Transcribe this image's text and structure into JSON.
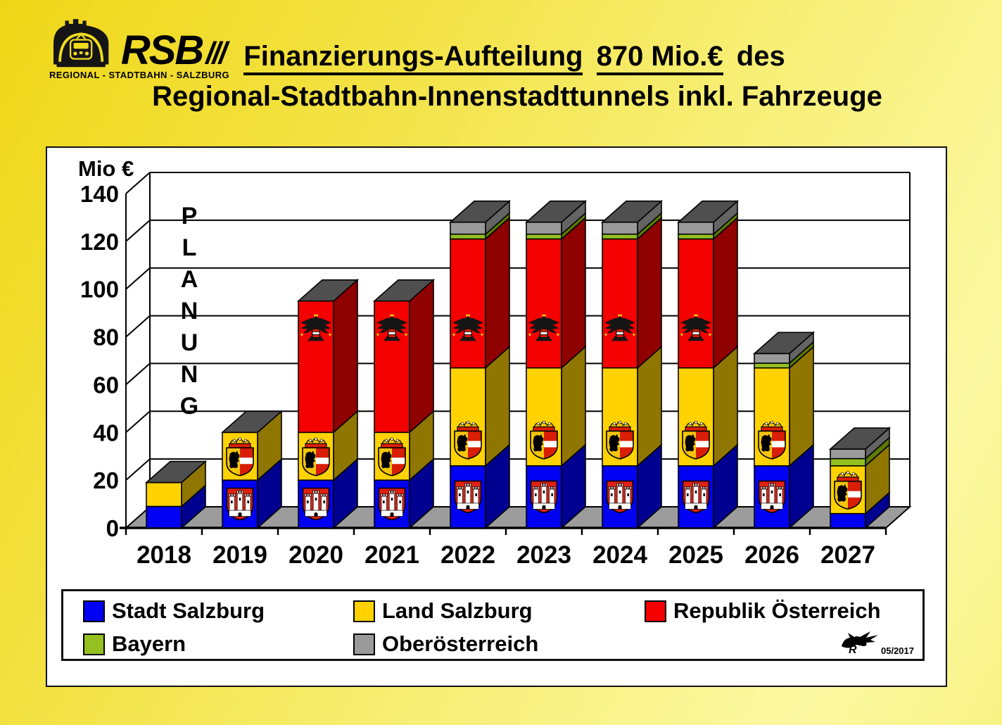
{
  "slide": {
    "logo": {
      "brand": "RSB",
      "slashes": "///",
      "caption": "REGIONAL - STADTBAHN - SALZBURG"
    },
    "title": {
      "line1_part1": "Finanzierungs-Aufteilung",
      "line1_part2": "870 Mio.€",
      "line1_part3": "des",
      "line2": "Regional-Stadtbahn-Innenstadttunnels inkl. Fahrzeuge"
    },
    "signature_date": "05/2017"
  },
  "chart_data": {
    "type": "bar",
    "stacked": true,
    "effect": "3d",
    "title": "Finanzierungs-Aufteilung 870 Mio.€ des Regional-Stadtbahn-Innenstadttunnels inkl. Fahrzeuge",
    "unit_label": "Mio €",
    "watermark": "PLANUNG",
    "xlabel": "",
    "ylabel": "Mio €",
    "ylim": [
      0,
      140
    ],
    "ytick_step": 20,
    "yticks": [
      0,
      20,
      40,
      60,
      80,
      100,
      120,
      140
    ],
    "grid": true,
    "legend_position": "bottom",
    "categories": [
      "2018",
      "2019",
      "2020",
      "2021",
      "2022",
      "2023",
      "2024",
      "2025",
      "2026",
      "2027"
    ],
    "series": [
      {
        "name": "Stadt Salzburg",
        "color": "#0000f2",
        "side_color": "#000090",
        "emblem": "stadt-salzburg-coat-of-arms",
        "values": [
          9,
          20,
          20,
          20,
          26,
          26,
          26,
          26,
          26,
          6
        ]
      },
      {
        "name": "Land Salzburg",
        "color": "#ffd200",
        "side_color": "#8f7600",
        "emblem": "land-salzburg-coat-of-arms",
        "values": [
          10,
          20,
          20,
          20,
          41,
          41,
          41,
          41,
          41,
          20
        ]
      },
      {
        "name": "Republik Österreich",
        "color": "#f40000",
        "side_color": "#8f0000",
        "emblem": "austria-federal-eagle",
        "values": [
          0,
          0,
          55,
          55,
          54,
          54,
          54,
          54,
          0,
          0
        ]
      },
      {
        "name": "Bayern",
        "color": "#94c11f",
        "side_color": "#5c7a00",
        "emblem": null,
        "values": [
          0,
          0,
          0,
          0,
          2,
          2,
          2,
          2,
          2,
          3
        ]
      },
      {
        "name": "Oberösterreich",
        "color": "#9a9a9a",
        "side_color": "#646464",
        "emblem": null,
        "values": [
          0,
          0,
          0,
          0,
          5,
          5,
          5,
          5,
          4,
          4
        ]
      }
    ],
    "totals": [
      19,
      40,
      95,
      95,
      128,
      128,
      128,
      128,
      73,
      33
    ],
    "grand_total_label": "870 Mio.€",
    "top_face_color": "#4f4f4f",
    "floor_color": "#9c9c9c"
  }
}
